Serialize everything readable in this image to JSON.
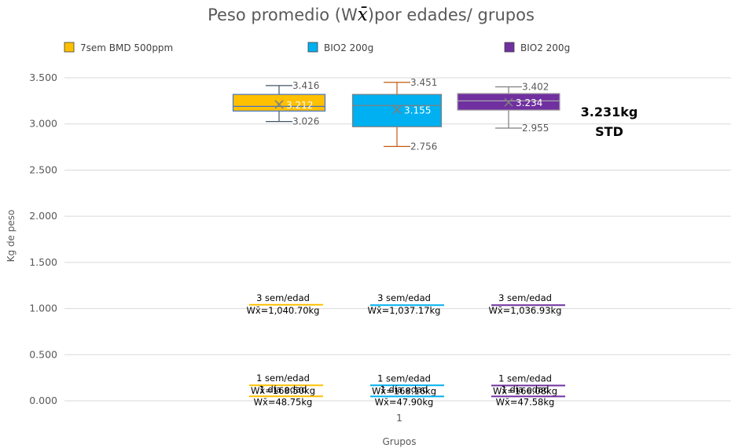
{
  "chart_data": {
    "type": "box",
    "title_prefix": "Peso promedio (W",
    "title_symbol": "x̄",
    "title_suffix": ")por edades/ grupos",
    "xlabel": "Grupos",
    "ylabel": "Kg de peso",
    "x_category": "1",
    "ylim": [
      0,
      3.5
    ],
    "yticks": [
      0,
      0.5,
      1.0,
      1.5,
      2.0,
      2.5,
      3.0,
      3.5
    ],
    "ytick_labels": [
      "0.000",
      "0.500",
      "1.000",
      "1.500",
      "2.000",
      "2.500",
      "3.000",
      "3.500"
    ],
    "gridlines": true,
    "legend_position": "top",
    "series": [
      {
        "name": "7sem BMD 500ppm",
        "color": "#ffc000",
        "edge_color": "#4472c4",
        "whisker_color": "#44546a",
        "min": 3.026,
        "q1": 3.14,
        "median": 3.19,
        "q3": 3.32,
        "max": 3.416,
        "mean": 3.212,
        "min_label": "3.026",
        "max_label": "3.416",
        "mean_label": "3.212",
        "ages": [
          {
            "label": "3 sem/edad",
            "value_label": "Wx̄=1,040.70kg",
            "value": 1.0407
          },
          {
            "label": "1 sem/edad",
            "value_label": "Wx̄=168.50kg",
            "value": 0.1685
          },
          {
            "label": "1 día edad",
            "value_label": "Wx̄=48.75kg",
            "value": 0.04875
          }
        ]
      },
      {
        "name": "BIO2 200g",
        "color": "#00b0f0",
        "edge_color": "#7f7f7f",
        "whisker_color": "#c55a11",
        "min": 2.756,
        "q1": 2.97,
        "median": 3.2,
        "q3": 3.32,
        "max": 3.451,
        "mean": 3.155,
        "min_label": "2.756",
        "max_label": "3.451",
        "mean_label": "3.155",
        "ages": [
          {
            "label": "3 sem/edad",
            "value_label": "Wx̄=1,037.17kg",
            "value": 1.03717
          },
          {
            "label": "1 sem/edad",
            "value_label": "Wx̄=168.16kg",
            "value": 0.16816
          },
          {
            "label": "1 día edad",
            "value_label": "Wx̄=47.90kg",
            "value": 0.0479
          }
        ]
      },
      {
        "name": "BIO2 200g",
        "color": "#7030a0",
        "edge_color": "#a5a5a5",
        "whisker_color": "#7f7f7f",
        "min": 2.955,
        "q1": 3.15,
        "median": 3.25,
        "q3": 3.33,
        "max": 3.402,
        "mean": 3.234,
        "min_label": "2.955",
        "max_label": "3.402",
        "mean_label": "3.234",
        "ages": [
          {
            "label": "3 sem/edad",
            "value_label": "Wx̄=1,036.93kg",
            "value": 1.03693
          },
          {
            "label": "1 sem/edad",
            "value_label": "Wx̄=166.08kg",
            "value": 0.16608
          },
          {
            "label": "1 día edad",
            "value_label": "Wx̄=47.58kg",
            "value": 0.04758
          }
        ]
      }
    ],
    "annotation": {
      "line1": "3.231kg",
      "line2": "STD"
    }
  }
}
